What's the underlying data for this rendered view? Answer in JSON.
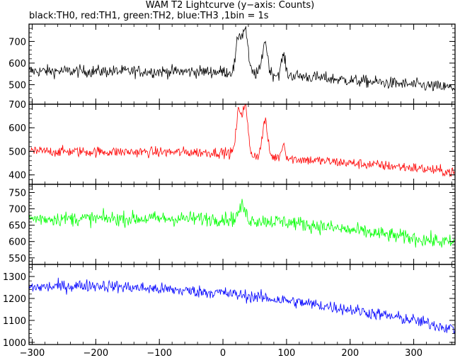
{
  "title": "WAM T2 Lightcurve (y−axis: Counts)",
  "subtitle": "black:TH0, red:TH1, green:TH2, blue:TH3 ,1bin = 1s",
  "chart_data": [
    {
      "type": "line",
      "name": "TH0",
      "color": "#000000",
      "xlim": [
        -305,
        365
      ],
      "ylim": [
        410,
        780
      ],
      "yticks": [
        500,
        600,
        700
      ],
      "baseline": [
        [
          -305,
          563
        ],
        [
          0,
          560
        ],
        [
          100,
          545
        ],
        [
          200,
          520
        ],
        [
          300,
          500
        ],
        [
          365,
          485
        ]
      ],
      "noise": 28,
      "peaks": [
        [
          25,
          170,
          4
        ],
        [
          35,
          200,
          4
        ],
        [
          66,
          150,
          4
        ],
        [
          95,
          90,
          3
        ]
      ]
    },
    {
      "type": "line",
      "name": "TH1",
      "color": "#ff0000",
      "xlim": [
        -305,
        365
      ],
      "ylim": [
        360,
        700
      ],
      "yticks": [
        400,
        500,
        600,
        700
      ],
      "baseline": [
        [
          -305,
          500
        ],
        [
          0,
          495
        ],
        [
          100,
          470
        ],
        [
          200,
          450
        ],
        [
          300,
          430
        ],
        [
          365,
          410
        ]
      ],
      "noise": 22,
      "peaks": [
        [
          25,
          180,
          4
        ],
        [
          35,
          200,
          4
        ],
        [
          66,
          150,
          4
        ],
        [
          95,
          60,
          3
        ]
      ]
    },
    {
      "type": "line",
      "name": "TH2",
      "color": "#00ff00",
      "xlim": [
        -305,
        365
      ],
      "ylim": [
        530,
        775
      ],
      "yticks": [
        550,
        600,
        650,
        700,
        750
      ],
      "baseline": [
        [
          -305,
          670
        ],
        [
          0,
          670
        ],
        [
          100,
          660
        ],
        [
          200,
          635
        ],
        [
          300,
          610
        ],
        [
          365,
          595
        ]
      ],
      "noise": 22,
      "peaks": [
        [
          30,
          40,
          5
        ]
      ]
    },
    {
      "type": "line",
      "name": "TH3",
      "color": "#0000ff",
      "xlim": [
        -305,
        365
      ],
      "ylim": [
        990,
        1355
      ],
      "yticks": [
        1000,
        1100,
        1200,
        1300
      ],
      "baseline": [
        [
          -305,
          1250
        ],
        [
          -200,
          1260
        ],
        [
          0,
          1225
        ],
        [
          100,
          1190
        ],
        [
          200,
          1150
        ],
        [
          300,
          1100
        ],
        [
          365,
          1060
        ]
      ],
      "noise": 28,
      "peaks": []
    }
  ],
  "xticks": [
    -300,
    -200,
    -100,
    0,
    100,
    200,
    300
  ],
  "ticklabels": {
    "x": [
      "−300",
      "−200",
      "−100",
      "0",
      "100",
      "200",
      "300"
    ],
    "y0": [
      "500",
      "600",
      "700"
    ],
    "y1": [
      "400",
      "500",
      "600",
      "700"
    ],
    "y2": [
      "550",
      "600",
      "650",
      "700",
      "750"
    ],
    "y3": [
      "1000",
      "1100",
      "1200",
      "1300"
    ]
  }
}
